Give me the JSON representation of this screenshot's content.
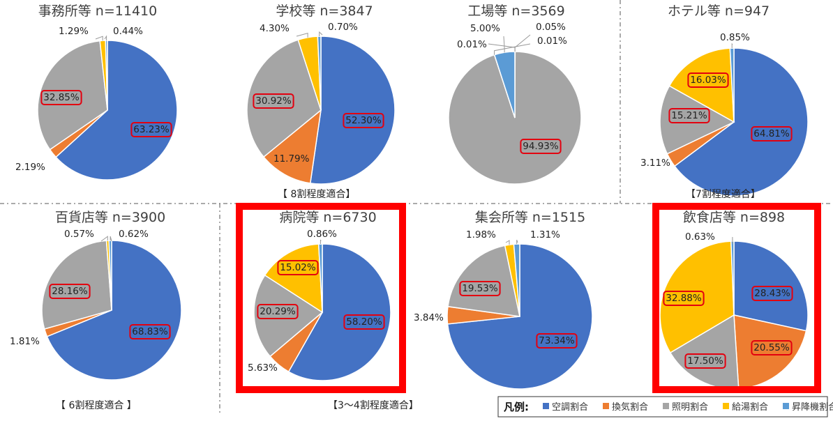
{
  "legend": {
    "heading": "凡例:",
    "items": [
      {
        "label": "空調割合",
        "color": "#4472C4"
      },
      {
        "label": "換気割合",
        "color": "#ED7D31"
      },
      {
        "label": "照明割合",
        "color": "#A5A5A5"
      },
      {
        "label": "給湯割合",
        "color": "#FFC000"
      },
      {
        "label": "昇降機割合",
        "color": "#5B9BD5"
      }
    ]
  },
  "suitability_notes": [
    "【 8割程度適合】",
    "【7割程度適合】",
    "【 6割程度適合 】",
    "【3～4割程度適合】"
  ],
  "chart_data": [
    {
      "type": "pie",
      "title": "事務所等 n=11410",
      "categories": [
        "空調割合",
        "換気割合",
        "照明割合",
        "給湯割合",
        "昇降機割合"
      ],
      "values": [
        63.23,
        2.19,
        32.85,
        1.29,
        0.44
      ],
      "labels": [
        "63.23%",
        "2.19%",
        "32.85%",
        "1.29%",
        "0.44%"
      ],
      "highlighted": false
    },
    {
      "type": "pie",
      "title": "学校等 n=3847",
      "categories": [
        "空調割合",
        "換気割合",
        "照明割合",
        "給湯割合",
        "昇降機割合"
      ],
      "values": [
        52.3,
        11.79,
        30.92,
        4.3,
        0.7
      ],
      "labels": [
        "52.30%",
        "11.79%",
        "30.92%",
        "4.30%",
        "0.70%"
      ],
      "highlighted": false
    },
    {
      "type": "pie",
      "title": "工場等 n=3569",
      "categories": [
        "空調割合",
        "換気割合",
        "照明割合",
        "給湯割合",
        "昇降機割合"
      ],
      "values": [
        0.01,
        0.05,
        94.93,
        0.01,
        5.0
      ],
      "labels": [
        "0.01%",
        "0.05%",
        "94.93%",
        "0.01%",
        "5.00%"
      ],
      "highlighted": false
    },
    {
      "type": "pie",
      "title": "ホテル等 n=947",
      "categories": [
        "空調割合",
        "換気割合",
        "照明割合",
        "給湯割合",
        "昇降機割合"
      ],
      "values": [
        64.81,
        3.11,
        15.21,
        16.03,
        0.85
      ],
      "labels": [
        "64.81%",
        "3.11%",
        "15.21%",
        "16.03%",
        "0.85%"
      ],
      "highlighted": false
    },
    {
      "type": "pie",
      "title": "百貨店等 n=3900",
      "categories": [
        "空調割合",
        "換気割合",
        "照明割合",
        "給湯割合",
        "昇降機割合"
      ],
      "values": [
        68.83,
        1.81,
        28.16,
        0.57,
        0.62
      ],
      "labels": [
        "68.83%",
        "1.81%",
        "28.16%",
        "0.57%",
        "0.62%"
      ],
      "highlighted": false
    },
    {
      "type": "pie",
      "title": "病院等 n=6730",
      "categories": [
        "空調割合",
        "換気割合",
        "照明割合",
        "給湯割合",
        "昇降機割合"
      ],
      "values": [
        58.2,
        5.63,
        20.29,
        15.02,
        0.86
      ],
      "labels": [
        "58.20%",
        "5.63%",
        "20.29%",
        "15.02%",
        "0.86%"
      ],
      "highlighted": true
    },
    {
      "type": "pie",
      "title": "集会所等 n=1515",
      "categories": [
        "空調割合",
        "換気割合",
        "照明割合",
        "給湯割合",
        "昇降機割合"
      ],
      "values": [
        73.34,
        3.84,
        19.53,
        1.98,
        1.31
      ],
      "labels": [
        "73.34%",
        "3.84%",
        "19.53%",
        "1.98%",
        "1.31%"
      ],
      "highlighted": false
    },
    {
      "type": "pie",
      "title": "飲食店等 n=898",
      "categories": [
        "空調割合",
        "換気割合",
        "照明割合",
        "給湯割合",
        "昇降機割合"
      ],
      "values": [
        28.43,
        20.55,
        17.5,
        32.88,
        0.63
      ],
      "labels": [
        "28.43%",
        "20.55%",
        "17.50%",
        "32.88%",
        "0.63%"
      ],
      "highlighted": true
    }
  ]
}
